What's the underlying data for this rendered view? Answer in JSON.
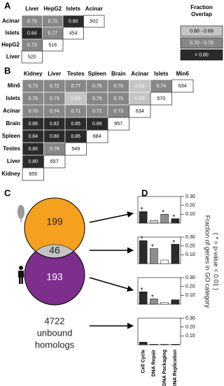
{
  "panel_labels": [
    "A",
    "B",
    "C",
    "D"
  ],
  "table_a": {
    "columns": [
      "Liver",
      "HepG2",
      "Islets",
      "Acinar"
    ],
    "rows": [
      {
        "label": "Acinar",
        "cells": [
          "0.73",
          "0.72",
          "0.80",
          "502"
        ]
      },
      {
        "label": "Islets",
        "cells": [
          "0.84",
          "0.77",
          "454"
        ]
      },
      {
        "label": "HepG2",
        "cells": [
          "0.73",
          "516"
        ]
      },
      {
        "label": "Liver",
        "cells": [
          "520"
        ]
      }
    ]
  },
  "legend": {
    "title": [
      "Fraction",
      "Overlap"
    ],
    "items": [
      {
        "label": "0.60 - 0.69",
        "color": "#c4c4c4"
      },
      {
        "label": "0.70 - 0.79",
        "color": "#878787"
      },
      {
        "label": "> 0.80",
        "color": "#2b2b2b"
      }
    ]
  },
  "table_b": {
    "columns": [
      "Kidney",
      "Liver",
      "Testes",
      "Spleen",
      "Brain",
      "Acinar",
      "Islets",
      "Min6"
    ],
    "rows": [
      {
        "label": "Min6",
        "cells": [
          "0.73",
          "0.72",
          "0.77",
          "0.76",
          "0.76",
          "0.63",
          "0.74",
          "634"
        ]
      },
      {
        "label": "Islets",
        "cells": [
          "0.75",
          "0.73",
          "0.69",
          "0.75",
          "0.75",
          "0.69",
          "570"
        ]
      },
      {
        "label": "Acinar",
        "cells": [
          "0.70",
          "0.74",
          "0.71",
          "0.72",
          "0.73",
          "634"
        ]
      },
      {
        "label": "Brain",
        "cells": [
          "0.86",
          "0.82",
          "0.85",
          "0.86",
          "657"
        ]
      },
      {
        "label": "Spleen",
        "cells": [
          "0.84",
          "0.80",
          "0.86",
          "684"
        ]
      },
      {
        "label": "Testes",
        "cells": [
          "0.85",
          "0.79",
          "549"
        ]
      },
      {
        "label": "Liver",
        "cells": [
          "0.80",
          "657"
        ]
      },
      {
        "label": "Kidney",
        "cells": [
          "655"
        ]
      }
    ]
  },
  "venn": {
    "top": "199",
    "overlap": "46",
    "bottom": "193",
    "outside_count": "4722",
    "outside_label": [
      "unbound",
      "homologs"
    ]
  },
  "go_charts": {
    "ylim": [
      0,
      0.3
    ],
    "yticks": [
      {
        "value": 0.1,
        "label": "0.10"
      },
      {
        "value": 0.2,
        "label": "0.20"
      },
      {
        "value": 0.3,
        "label": "0.30"
      }
    ],
    "categories": [
      "Cell Cycle",
      "DNA Repair",
      "DNA Packaging",
      "DNA Replication"
    ],
    "y_label": "Fraction of genes in GO category",
    "y_note": "( * = p-value < 0.01 )",
    "charts": [
      {
        "values": [
          0.13,
          0.03,
          0.1,
          0.05
        ],
        "colors": [
          "#2b2b2b",
          "#d9d9d9",
          "#8f8f8f",
          "#2b2b2b"
        ],
        "marks": [
          "*",
          null,
          "*",
          "*"
        ]
      },
      {
        "values": [
          0.26,
          0.17,
          0.04,
          0.22
        ],
        "colors": [
          "#2b2b2b",
          "#8f8f8f",
          "#ffffff",
          "#2b2b2b"
        ],
        "marks": [
          "*",
          "*",
          null,
          "*"
        ]
      },
      {
        "values": [
          0.14,
          0.06,
          0.02,
          0.05
        ],
        "colors": [
          "#2b2b2b",
          "#8f8f8f",
          "#ffffff",
          "#2b2b2b"
        ],
        "marks": [
          "*",
          "*",
          null,
          null
        ]
      },
      {
        "values": [
          0.03,
          0.005,
          0.005,
          0.005
        ],
        "colors": [
          "#2b2b2b",
          "#8f8f8f",
          "#ffffff",
          "#2b2b2b"
        ],
        "marks": [
          null,
          null,
          null,
          null
        ]
      }
    ]
  }
}
